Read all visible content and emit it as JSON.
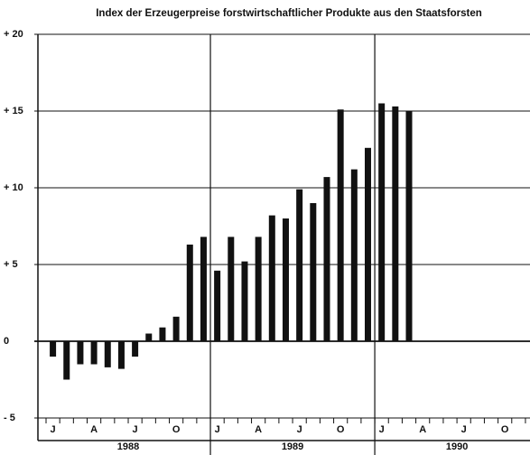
{
  "chart_data": {
    "type": "bar",
    "title": "Index der Erzeugerpreise forstwirtschaftlicher Produkte aus den Staatsforsten",
    "categories": [
      "J",
      null,
      null,
      "A",
      null,
      null,
      "J",
      null,
      null,
      "O",
      null,
      null,
      "J",
      null,
      null,
      "A",
      null,
      null,
      "J",
      null,
      null,
      "O",
      null,
      null,
      "J",
      null,
      null,
      "A",
      null,
      null,
      "J",
      null,
      null,
      "O",
      null,
      null
    ],
    "year_labels": [
      "1988",
      "1989",
      "1990"
    ],
    "values": [
      -1.0,
      -2.5,
      -1.5,
      -1.5,
      -1.7,
      -1.8,
      -1.0,
      0.5,
      0.9,
      1.6,
      6.3,
      6.8,
      4.6,
      6.8,
      5.2,
      6.8,
      8.2,
      8.0,
      9.9,
      9.0,
      10.7,
      15.1,
      11.2,
      12.6,
      15.5,
      15.3,
      15.0,
      null,
      null,
      null,
      null,
      null,
      null,
      null,
      null,
      null
    ],
    "color": "#111111",
    "ylim": [
      -5,
      20
    ],
    "yticks": [
      {
        "value": 20,
        "label": "+ 20"
      },
      {
        "value": 15,
        "label": "+ 15"
      },
      {
        "value": 10,
        "label": "+ 10"
      },
      {
        "value": 5,
        "label": "+ 5"
      },
      0,
      {
        "value": -5,
        "label": "- 5"
      }
    ],
    "grid": true
  }
}
